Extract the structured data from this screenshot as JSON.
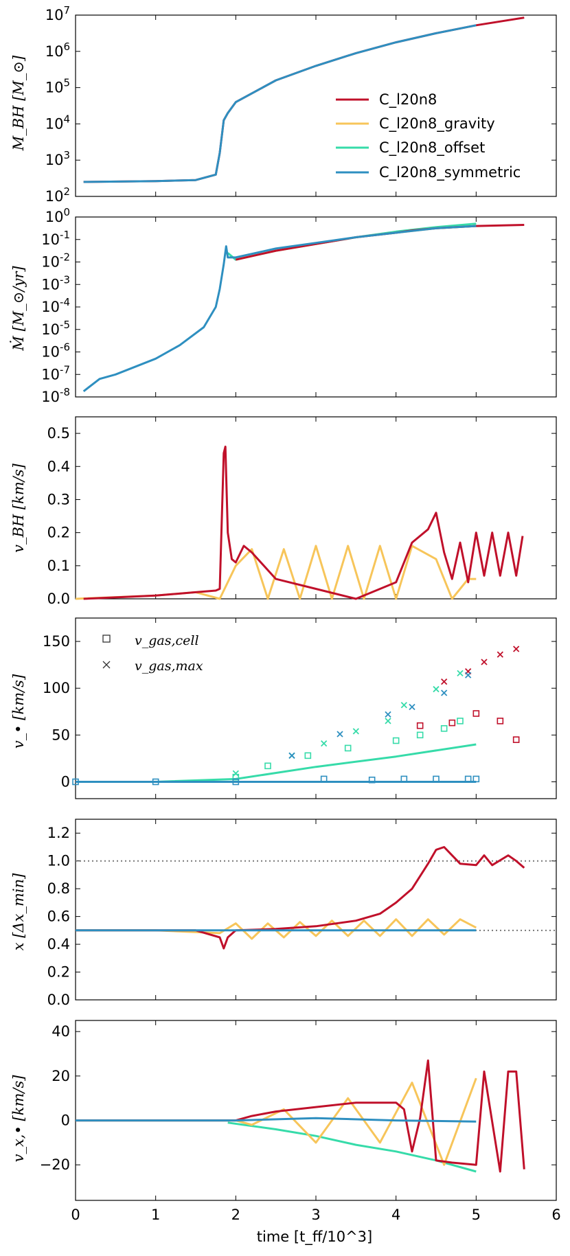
{
  "colors": {
    "C_l20n8": "#c0102a",
    "C_l20n8_gravity": "#f7c55a",
    "C_l20n8_offset": "#36dba9",
    "C_l20n8_symmetric": "#2e8fc0",
    "axes": "#000000",
    "dotted": "#777777"
  },
  "xaxis": {
    "label": "time [t_ff/10^3]",
    "tick_labels": [
      "0",
      "1",
      "2",
      "3",
      "4",
      "5",
      "6"
    ],
    "xlim": [
      0,
      6
    ]
  },
  "chart_data": [
    {
      "type": "line",
      "title": "",
      "ylabel": "M_BH [M_⊙]",
      "yscale": "log",
      "ylim": [
        2,
        7
      ],
      "ytick_labels": [
        "10^2",
        "10^3",
        "10^4",
        "10^5",
        "10^6",
        "10^7"
      ],
      "legend": {
        "placement": "bottom-right",
        "entries": [
          "C_l20n8",
          "C_l20n8_gravity",
          "C_l20n8_offset",
          "C_l20n8_symmetric"
        ]
      },
      "series": [
        {
          "name": "C_l20n8",
          "x": [
            0.1,
            1.0,
            1.5,
            1.75,
            1.8,
            1.85,
            1.9,
            2.0,
            2.5,
            3.0,
            3.5,
            4.0,
            4.5,
            5.0,
            5.6
          ],
          "y": [
            2.4,
            2.42,
            2.45,
            2.6,
            3.2,
            4.1,
            4.3,
            4.6,
            5.2,
            5.6,
            5.95,
            6.25,
            6.5,
            6.72,
            6.93
          ]
        },
        {
          "name": "C_l20n8_symmetric",
          "x": [
            0.1,
            1.0,
            1.5,
            1.75,
            1.8,
            1.85,
            1.9,
            2.0,
            2.5,
            3.0,
            3.5,
            4.0,
            4.5,
            5.0
          ],
          "y": [
            2.4,
            2.42,
            2.45,
            2.6,
            3.2,
            4.1,
            4.3,
            4.6,
            5.2,
            5.6,
            5.95,
            6.25,
            6.5,
            6.72
          ]
        }
      ]
    },
    {
      "type": "line",
      "ylabel": "Ṁ [M_⊙/yr]",
      "yscale": "log",
      "ylim": [
        -8,
        0
      ],
      "ytick_labels": [
        "10^-8",
        "10^-7",
        "10^-6",
        "10^-5",
        "10^-4",
        "10^-3",
        "10^-2",
        "10^-1",
        "10^0"
      ],
      "series": [
        {
          "name": "C_l20n8",
          "x": [
            2.0,
            2.5,
            3.0,
            3.5,
            4.0,
            4.2,
            4.5,
            5.0,
            5.6
          ],
          "y": [
            -1.9,
            -1.5,
            -1.2,
            -0.9,
            -0.7,
            -0.6,
            -0.5,
            -0.4,
            -0.35
          ]
        },
        {
          "name": "C_l20n8_gravity",
          "x": [
            2.0,
            2.5,
            3.0,
            3.5,
            4.0,
            4.5,
            5.0
          ],
          "y": [
            -1.9,
            -1.5,
            -1.2,
            -0.9,
            -0.7,
            -0.5,
            -0.4
          ]
        },
        {
          "name": "C_l20n8_offset",
          "x": [
            1.9,
            2.0,
            2.5,
            3.0,
            3.5,
            4.0,
            4.5,
            5.0
          ],
          "y": [
            -1.6,
            -1.9,
            -1.5,
            -1.2,
            -0.9,
            -0.65,
            -0.45,
            -0.3
          ]
        },
        {
          "name": "C_l20n8_symmetric",
          "x": [
            0.1,
            0.3,
            0.5,
            1.0,
            1.3,
            1.6,
            1.75,
            1.8,
            1.85,
            1.88,
            1.9,
            2.0,
            2.5,
            3.0,
            3.5,
            4.0,
            4.5,
            5.0
          ],
          "y": [
            -7.75,
            -7.2,
            -7.0,
            -6.3,
            -5.7,
            -4.9,
            -4.0,
            -3.2,
            -2.1,
            -1.3,
            -1.8,
            -1.8,
            -1.4,
            -1.15,
            -0.9,
            -0.7,
            -0.5,
            -0.4
          ]
        }
      ]
    },
    {
      "type": "line",
      "ylabel": "v_BH [km/s]",
      "ylim": [
        0,
        0.55
      ],
      "ytick_labels": [
        "0.0",
        "0.1",
        "0.2",
        "0.3",
        "0.4",
        "0.5"
      ],
      "series": [
        {
          "name": "C_l20n8",
          "x": [
            0.1,
            1.0,
            1.5,
            1.75,
            1.8,
            1.85,
            1.87,
            1.9,
            1.95,
            2.0,
            2.1,
            2.2,
            2.5,
            3.0,
            3.5,
            4.0,
            4.2,
            4.4,
            4.5,
            4.6,
            4.7,
            4.8,
            4.9,
            5.0,
            5.1,
            5.2,
            5.3,
            5.4,
            5.5,
            5.58
          ],
          "y": [
            0.0,
            0.01,
            0.02,
            0.025,
            0.03,
            0.44,
            0.46,
            0.2,
            0.12,
            0.11,
            0.16,
            0.14,
            0.06,
            0.03,
            0.0,
            0.05,
            0.17,
            0.21,
            0.26,
            0.14,
            0.06,
            0.17,
            0.05,
            0.2,
            0.07,
            0.2,
            0.07,
            0.2,
            0.07,
            0.19
          ]
        },
        {
          "name": "C_l20n8_gravity",
          "x": [
            0.0,
            0.5,
            1.0,
            1.5,
            1.8,
            2.0,
            2.2,
            2.4,
            2.6,
            2.8,
            3.0,
            3.2,
            3.4,
            3.6,
            3.8,
            4.0,
            4.2,
            4.5,
            4.7,
            4.9,
            5.0
          ],
          "y": [
            0.0,
            0.005,
            0.01,
            0.02,
            0.0,
            0.1,
            0.15,
            0.0,
            0.15,
            0.0,
            0.16,
            0.0,
            0.16,
            0.0,
            0.16,
            0.0,
            0.16,
            0.12,
            0.0,
            0.06,
            0.06
          ]
        }
      ]
    },
    {
      "type": "line",
      "ylabel": "v_• [km/s]",
      "ylim": [
        -18,
        175
      ],
      "ytick_labels": [
        "0",
        "50",
        "100",
        "150"
      ],
      "legend": {
        "placement": "top-left",
        "entries": [
          "v_gas,cell",
          "v_gas,max"
        ]
      },
      "series": [
        {
          "name": "C_l20n8_offset",
          "x": [
            0.0,
            1.0,
            2.0,
            3.0,
            4.0,
            5.0
          ],
          "y": [
            0,
            0,
            3,
            16,
            27,
            40
          ]
        },
        {
          "name": "C_l20n8_symmetric",
          "x": [
            0.0,
            1.0,
            2.0,
            3.0,
            4.0,
            5.0
          ],
          "y": [
            0,
            0,
            0,
            0,
            0,
            0
          ]
        }
      ],
      "markers_square": [
        {
          "series": "C_l20n8",
          "x": [
            4.3,
            4.7,
            5.0,
            5.3,
            5.5
          ],
          "y": [
            60,
            63,
            73,
            65,
            45
          ]
        },
        {
          "series": "C_l20n8_offset",
          "x": [
            2.0,
            2.4,
            2.9,
            3.4,
            4.0,
            4.3,
            4.6,
            4.8
          ],
          "y": [
            5,
            17,
            28,
            36,
            44,
            50,
            57,
            65
          ]
        },
        {
          "series": "C_l20n8_symmetric",
          "x": [
            0.0,
            1.0,
            2.0,
            3.1,
            3.7,
            4.1,
            4.5,
            4.9,
            5.0
          ],
          "y": [
            0,
            0,
            0,
            3,
            2,
            3,
            3,
            3,
            3
          ]
        }
      ],
      "markers_cross": [
        {
          "series": "C_l20n8",
          "x": [
            4.6,
            4.9,
            5.1,
            5.3,
            5.5
          ],
          "y": [
            107,
            118,
            128,
            136,
            142
          ]
        },
        {
          "series": "C_l20n8_offset",
          "x": [
            2.0,
            2.7,
            3.1,
            3.5,
            3.9,
            4.1,
            4.5,
            4.8
          ],
          "y": [
            9,
            28,
            41,
            54,
            65,
            82,
            99,
            116
          ]
        },
        {
          "series": "C_l20n8_symmetric",
          "x": [
            2.7,
            3.3,
            3.9,
            4.2,
            4.6,
            4.9
          ],
          "y": [
            28,
            51,
            72,
            80,
            95,
            114
          ]
        }
      ]
    },
    {
      "type": "line",
      "ylabel": "x [Δx_min]",
      "ylim": [
        0,
        1.3
      ],
      "ytick_labels": [
        "0.0",
        "0.2",
        "0.4",
        "0.6",
        "0.8",
        "1.0",
        "1.2"
      ],
      "reference_lines": [
        1.0,
        0.5
      ],
      "series": [
        {
          "name": "C_l20n8",
          "x": [
            0.0,
            1.5,
            1.8,
            1.85,
            1.9,
            2.0,
            2.5,
            3.0,
            3.5,
            3.8,
            4.0,
            4.2,
            4.4,
            4.5,
            4.6,
            4.7,
            4.8,
            5.0,
            5.1,
            5.2,
            5.4,
            5.5,
            5.6
          ],
          "y": [
            0.5,
            0.5,
            0.45,
            0.37,
            0.45,
            0.5,
            0.51,
            0.53,
            0.57,
            0.62,
            0.7,
            0.8,
            0.98,
            1.08,
            1.1,
            1.04,
            0.98,
            0.97,
            1.04,
            0.97,
            1.04,
            1.0,
            0.95
          ]
        },
        {
          "name": "C_l20n8_gravity",
          "x": [
            0.0,
            1.0,
            1.8,
            2.0,
            2.2,
            2.4,
            2.6,
            2.8,
            3.0,
            3.2,
            3.4,
            3.6,
            3.8,
            4.0,
            4.2,
            4.4,
            4.6,
            4.8,
            5.0
          ],
          "y": [
            0.5,
            0.5,
            0.48,
            0.55,
            0.44,
            0.55,
            0.45,
            0.56,
            0.46,
            0.57,
            0.46,
            0.57,
            0.46,
            0.58,
            0.46,
            0.58,
            0.47,
            0.58,
            0.52
          ]
        },
        {
          "name": "C_l20n8_symmetric",
          "x": [
            0.0,
            5.0
          ],
          "y": [
            0.5,
            0.5
          ]
        }
      ]
    },
    {
      "type": "line",
      "ylabel": "v_x,• [km/s]",
      "ylim": [
        -36,
        45
      ],
      "ytick_labels": [
        "−20",
        "0",
        "20",
        "40"
      ],
      "series": [
        {
          "name": "C_l20n8",
          "x": [
            0.0,
            2.0,
            2.2,
            2.5,
            3.0,
            3.5,
            4.0,
            4.1,
            4.2,
            4.3,
            4.4,
            4.5,
            4.7,
            5.0,
            5.1,
            5.3,
            5.4,
            5.5,
            5.6
          ],
          "y": [
            0,
            0,
            2,
            4,
            6,
            8,
            8,
            5,
            -14,
            1,
            27,
            -18,
            -19,
            -20,
            22,
            -23,
            22,
            22,
            -22
          ]
        },
        {
          "name": "C_l20n8_gravity",
          "x": [
            0.0,
            2.0,
            2.2,
            2.6,
            3.0,
            3.4,
            3.8,
            4.2,
            4.6,
            5.0
          ],
          "y": [
            0,
            0,
            -2,
            5,
            -10,
            10,
            -10,
            17,
            -20,
            19
          ]
        },
        {
          "name": "C_l20n8_offset",
          "x": [
            1.9,
            2.5,
            3.0,
            3.5,
            4.0,
            4.5,
            5.0
          ],
          "y": [
            -1,
            -4,
            -7,
            -11,
            -14,
            -18,
            -23
          ]
        },
        {
          "name": "C_l20n8_symmetric",
          "x": [
            0.0,
            2.0,
            3.0,
            4.0,
            5.0
          ],
          "y": [
            0,
            0,
            1,
            0,
            -0.5
          ]
        }
      ]
    }
  ]
}
